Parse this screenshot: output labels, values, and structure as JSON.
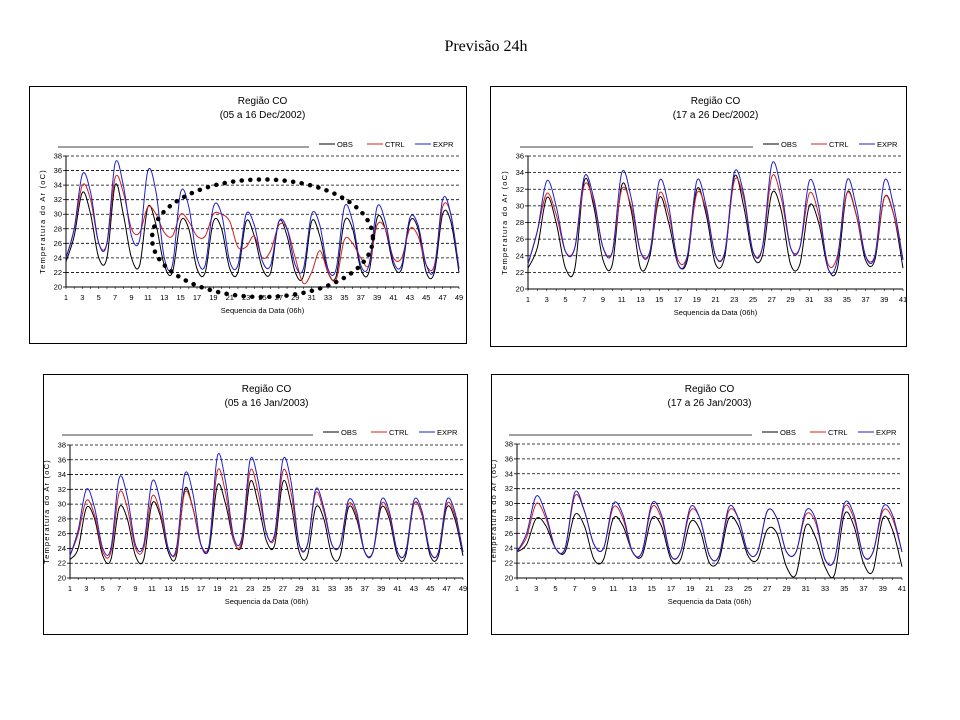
{
  "page_title": "Previsão 24h",
  "colors": {
    "OBS": "#000000",
    "CTRL": "#d22020",
    "EXPR": "#1f1fd0"
  },
  "chart_data": [
    {
      "type": "line",
      "title": "Região CO",
      "subtitle": "(05 a 16 Dec/2002)",
      "xlabel": "Sequencia da Data (06h)",
      "ylabel": "Temperatura do Ar (oC)",
      "ylim": [
        20,
        38
      ],
      "yticks": [
        20,
        22,
        24,
        26,
        28,
        30,
        32,
        34,
        36,
        38
      ],
      "xlim": [
        1,
        49
      ],
      "xticks": [
        1,
        3,
        5,
        7,
        9,
        11,
        13,
        15,
        17,
        19,
        21,
        23,
        25,
        27,
        29,
        31,
        33,
        35,
        37,
        39,
        41,
        43,
        45,
        47,
        49
      ],
      "grid": true,
      "legend": "top-right",
      "annotation": "dotted ellipse highlighting indices 12 to 38",
      "series": [
        {
          "name": "OBS",
          "values": [
            23.5,
            27,
            33,
            30,
            24,
            24,
            34,
            30,
            24,
            23,
            31,
            28.5,
            23,
            22,
            29,
            28,
            22.5,
            22,
            29,
            28,
            22.5,
            22,
            29,
            27,
            22.5,
            22,
            29,
            27,
            22,
            21.5,
            29,
            27,
            22,
            21.5,
            29,
            28,
            22.5,
            22,
            29.5,
            28,
            23,
            22.5,
            29,
            28,
            22,
            22,
            30,
            29,
            22
          ]
        },
        {
          "name": "CTRL",
          "values": [
            24,
            28,
            34,
            32,
            26,
            26,
            35,
            33,
            28,
            27.5,
            31,
            30,
            27.5,
            27,
            30,
            29,
            27,
            27,
            30,
            30,
            29,
            25.5,
            25.5,
            27,
            24,
            25,
            28.5,
            28,
            24,
            20.5,
            22,
            25,
            22,
            21,
            26.5,
            26,
            24,
            23,
            28.5,
            28,
            24,
            24,
            28,
            27,
            23,
            23,
            31,
            30,
            22.5
          ]
        },
        {
          "name": "EXPR",
          "values": [
            24,
            28,
            35.5,
            33,
            26,
            26,
            37,
            34,
            27,
            26.5,
            36,
            33,
            24,
            23,
            33,
            31,
            24,
            23,
            31,
            30,
            23.5,
            23,
            30,
            28.5,
            23.5,
            23,
            29,
            28,
            23,
            22.5,
            30,
            28.5,
            22.5,
            22.5,
            31,
            29,
            23,
            23,
            31,
            29,
            23.5,
            23,
            29.5,
            28.5,
            23,
            22.5,
            32,
            30,
            22.5
          ]
        }
      ]
    },
    {
      "type": "line",
      "title": "Região CO",
      "subtitle": "(17 a 26 Dec/2002)",
      "xlabel": "Sequencia da Data (06h)",
      "ylabel": "Temperatura do Ar (oC)",
      "ylim": [
        20,
        36
      ],
      "yticks": [
        20,
        22,
        24,
        26,
        28,
        30,
        32,
        34,
        36
      ],
      "xlim": [
        1,
        41
      ],
      "xticks": [
        1,
        3,
        5,
        7,
        9,
        11,
        13,
        15,
        17,
        19,
        21,
        23,
        25,
        27,
        29,
        31,
        33,
        35,
        37,
        39,
        41
      ],
      "grid": true,
      "legend": "top-right",
      "series": [
        {
          "name": "OBS",
          "values": [
            22.5,
            25,
            31,
            28,
            22.5,
            22.5,
            33,
            30,
            23.5,
            23,
            32.5,
            29.5,
            22.5,
            24,
            31,
            28,
            23,
            23.5,
            32,
            29,
            23,
            24,
            33.5,
            30,
            24,
            24,
            31.5,
            29.5,
            23,
            23,
            30,
            28,
            22.5,
            22.5,
            31.5,
            29,
            23.5,
            23.5,
            31,
            29,
            22.5
          ]
        },
        {
          "name": "CTRL",
          "values": [
            23,
            27,
            31.5,
            29,
            24.5,
            25,
            32.5,
            30.5,
            25,
            24.5,
            32,
            30,
            24.5,
            24.5,
            31.5,
            29,
            23.5,
            24,
            31.5,
            29.5,
            24,
            24.5,
            33,
            31,
            24.5,
            25,
            33.5,
            31,
            25,
            25,
            31.5,
            29,
            23,
            24,
            31.5,
            29,
            24,
            24,
            31,
            29,
            23.5
          ]
        },
        {
          "name": "EXPR",
          "values": [
            23,
            27,
            33,
            30,
            24.5,
            25,
            33.5,
            31,
            25,
            24.5,
            34,
            31,
            24.5,
            24.5,
            33,
            30,
            23,
            24,
            33,
            30,
            24,
            24.5,
            34,
            31.5,
            24.5,
            25,
            35,
            32,
            25,
            25,
            33,
            30,
            22.5,
            23.5,
            33,
            30,
            24,
            24,
            33,
            30,
            23.5
          ]
        }
      ]
    },
    {
      "type": "line",
      "title": "Região CO",
      "subtitle": "(05 a 16 Jan/2003)",
      "xlabel": "Sequencia da Data (06h)",
      "ylabel": "Temperatura do Ar (oC)",
      "ylim": [
        20,
        38
      ],
      "yticks": [
        20,
        22,
        24,
        26,
        28,
        30,
        32,
        34,
        36,
        38
      ],
      "xlim": [
        1,
        49
      ],
      "xticks": [
        1,
        3,
        5,
        7,
        9,
        11,
        13,
        15,
        17,
        19,
        21,
        23,
        25,
        27,
        29,
        31,
        33,
        35,
        37,
        39,
        41,
        43,
        45,
        47,
        49
      ],
      "grid": true,
      "legend": "top-right",
      "series": [
        {
          "name": "OBS",
          "values": [
            22.5,
            24,
            29.5,
            28,
            23,
            22.5,
            29.5,
            28,
            23,
            22.5,
            30,
            28.5,
            23.5,
            23,
            32,
            29.5,
            24.5,
            24,
            32.5,
            30,
            25,
            24.5,
            33,
            30,
            25,
            24.5,
            33,
            30,
            23.5,
            23,
            29.5,
            28,
            23,
            23,
            29.5,
            28,
            23.5,
            23.5,
            29.5,
            28,
            23,
            23,
            30,
            28.5,
            23,
            23,
            29.5,
            28,
            23
          ]
        },
        {
          "name": "CTRL",
          "values": [
            23,
            26,
            30.5,
            28.5,
            23.5,
            23.5,
            31.5,
            29.5,
            24,
            24,
            31,
            29,
            24,
            23.5,
            31.5,
            29.5,
            24.5,
            24.5,
            34.5,
            31.5,
            25,
            25,
            34.5,
            31.5,
            26,
            25.5,
            34.5,
            31.5,
            24.5,
            24.5,
            31.5,
            29,
            24.5,
            24.5,
            30,
            28.5,
            23.5,
            23.5,
            30,
            28.5,
            23.5,
            23.5,
            30,
            28.5,
            23.5,
            23.5,
            30,
            28.5,
            23.5
          ]
        },
        {
          "name": "EXPR",
          "values": [
            23,
            26.5,
            32,
            29.5,
            24,
            24,
            33.5,
            31,
            24.5,
            24.5,
            33,
            30.5,
            24,
            24,
            34,
            31.5,
            24.5,
            24.5,
            36.5,
            33,
            25.5,
            25.5,
            36,
            33,
            26,
            26,
            36,
            33,
            24.5,
            24.5,
            32,
            29.5,
            24.5,
            24.5,
            30.5,
            29,
            23.5,
            23.5,
            30.5,
            29,
            23.5,
            23.5,
            30.5,
            29,
            23.5,
            23.5,
            30.5,
            29,
            23.5
          ]
        }
      ]
    },
    {
      "type": "line",
      "title": "Região CO",
      "subtitle": "(17 a 26 Jan/2003)",
      "xlabel": "Sequencia da Data (06h)",
      "ylabel": "Temperatura do Ar (oC)",
      "ylim": [
        20,
        38
      ],
      "yticks": [
        20,
        22,
        24,
        26,
        28,
        30,
        32,
        34,
        36,
        38
      ],
      "xlim": [
        1,
        41
      ],
      "xticks": [
        1,
        3,
        5,
        7,
        9,
        11,
        13,
        15,
        17,
        19,
        21,
        23,
        25,
        27,
        29,
        31,
        33,
        35,
        37,
        39,
        41
      ],
      "grid": true,
      "legend": "top-right",
      "series": [
        {
          "name": "OBS",
          "values": [
            23.5,
            24.5,
            28,
            27,
            24,
            23.5,
            28.5,
            27,
            22.5,
            22.5,
            28,
            27,
            23.5,
            23,
            28,
            27,
            22.5,
            22.5,
            27.5,
            26.5,
            22,
            22.5,
            28,
            27,
            23,
            22.5,
            26.5,
            26,
            21.5,
            20.5,
            27,
            25.5,
            21.5,
            20.5,
            28.5,
            27,
            22,
            21,
            28,
            26.5,
            21.5
          ]
        },
        {
          "name": "CTRL",
          "values": [
            23.5,
            25.5,
            30,
            28,
            24,
            24,
            31,
            29,
            24.5,
            24,
            29.5,
            28,
            23.5,
            23.5,
            29.5,
            28,
            23,
            23.5,
            29,
            28,
            23,
            23,
            29,
            28,
            23.5,
            23.5,
            29,
            28,
            23.5,
            23.5,
            28.5,
            27.5,
            22.5,
            22.5,
            29.5,
            28,
            23,
            23.5,
            29,
            28,
            23.5
          ]
        },
        {
          "name": "EXPR",
          "values": [
            23.5,
            26,
            31,
            28.5,
            24,
            24,
            31.5,
            29,
            24.5,
            24,
            30,
            28.5,
            23.5,
            23.5,
            30,
            28.5,
            23,
            23.5,
            29.5,
            28,
            23,
            23,
            29.5,
            28,
            23.5,
            23.5,
            29,
            28,
            23.5,
            23.5,
            29,
            28,
            22.5,
            22.5,
            30,
            28.5,
            23,
            23.5,
            29.5,
            28.5,
            23.5
          ]
        }
      ]
    }
  ]
}
